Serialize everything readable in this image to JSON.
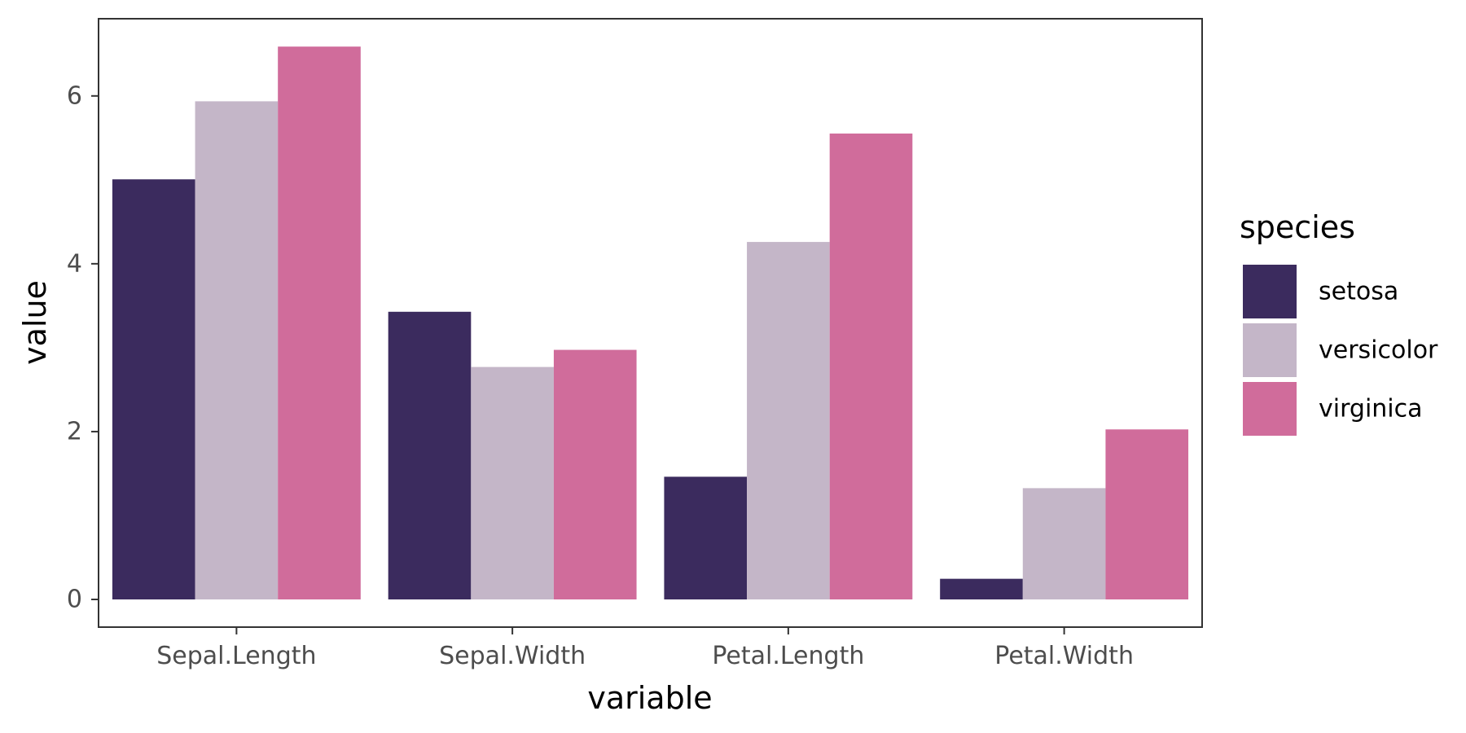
{
  "chart_data": {
    "type": "bar",
    "categories": [
      "Sepal.Length",
      "Sepal.Width",
      "Petal.Length",
      "Petal.Width"
    ],
    "series": [
      {
        "name": "setosa",
        "values": [
          5.006,
          3.428,
          1.462,
          0.246
        ],
        "color": "#3b2b5e"
      },
      {
        "name": "versicolor",
        "values": [
          5.936,
          2.77,
          4.26,
          1.326
        ],
        "color": "#c4b6c8"
      },
      {
        "name": "virginica",
        "values": [
          6.588,
          2.974,
          5.552,
          2.026
        ],
        "color": "#d06c9b"
      }
    ],
    "xlabel": "variable",
    "ylabel": "value",
    "ylim": [
      -0.33,
      6.92
    ],
    "yticks": [
      0,
      2,
      4,
      6
    ],
    "legend_title": "species",
    "legend_position": "right",
    "grid": false
  }
}
